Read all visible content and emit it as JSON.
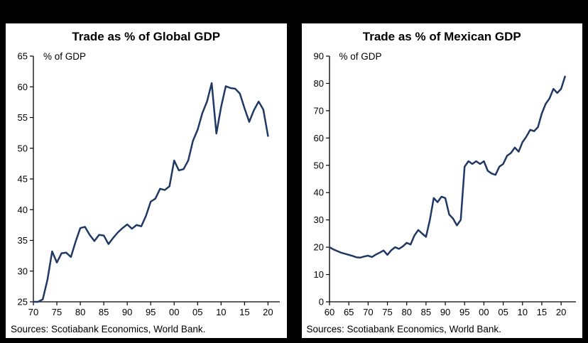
{
  "colors": {
    "background": "#000000",
    "panel": "#ffffff",
    "line": "#1f3864",
    "axis": "#000000",
    "text": "#000000"
  },
  "charts": [
    {
      "title": "Trade as % of Global GDP",
      "axis_note": "% of GDP",
      "source": "Sources: Scotiabank Economics, World Bank.",
      "chart_data": {
        "type": "line",
        "title": "Trade as % of Global GDP",
        "ylabel": "% of GDP",
        "ylim": [
          25,
          65
        ],
        "ytick_step": 5,
        "x_start": 1970,
        "frequency": "annual",
        "values": [
          25.0,
          25.0,
          25.4,
          28.6,
          33.2,
          31.4,
          32.9,
          33.0,
          32.3,
          34.8,
          37.0,
          37.2,
          35.9,
          34.9,
          35.9,
          35.8,
          34.4,
          35.4,
          36.3,
          37.0,
          37.6,
          36.9,
          37.5,
          37.3,
          39.0,
          41.3,
          41.8,
          43.4,
          43.2,
          43.8,
          48.0,
          46.4,
          46.6,
          48.0,
          51.2,
          53.0,
          55.7,
          57.6,
          60.6,
          52.4,
          56.7,
          60.1,
          59.8,
          59.7,
          58.9,
          56.5,
          54.3,
          56.2,
          57.6,
          56.3,
          52.0
        ],
        "xticks": [
          {
            "x": 1970,
            "label": "70"
          },
          {
            "x": 1975,
            "label": "75"
          },
          {
            "x": 1980,
            "label": "80"
          },
          {
            "x": 1985,
            "label": "85"
          },
          {
            "x": 1990,
            "label": "90"
          },
          {
            "x": 1995,
            "label": "95"
          },
          {
            "x": 2000,
            "label": "00"
          },
          {
            "x": 2005,
            "label": "05"
          },
          {
            "x": 2010,
            "label": "10"
          },
          {
            "x": 2015,
            "label": "15"
          },
          {
            "x": 2020,
            "label": "20"
          }
        ],
        "grid": false,
        "legend": "none"
      }
    },
    {
      "title": "Trade as % of Mexican GDP",
      "axis_note": "% of GDP",
      "source": "Sources: Scotiabank Economics, World Bank.",
      "chart_data": {
        "type": "line",
        "title": "Trade as % of Mexican GDP",
        "ylabel": "% of GDP",
        "ylim": [
          0,
          90
        ],
        "ytick_step": 10,
        "x_start": 1960,
        "frequency": "annual",
        "values": [
          20.0,
          19.2,
          18.6,
          18.0,
          17.6,
          17.2,
          16.8,
          16.3,
          16.2,
          16.6,
          16.9,
          16.4,
          17.3,
          18.0,
          18.8,
          17.2,
          18.9,
          20.0,
          19.4,
          20.3,
          21.6,
          21.0,
          24.3,
          26.3,
          25.0,
          23.8,
          30.0,
          38.0,
          36.5,
          38.5,
          38.0,
          32.0,
          30.5,
          28.0,
          30.0,
          49.5,
          51.5,
          50.5,
          51.5,
          50.5,
          51.5,
          48.0,
          47.0,
          46.5,
          49.5,
          50.5,
          53.5,
          54.5,
          56.5,
          55.0,
          58.5,
          60.5,
          63.0,
          62.5,
          64.0,
          69.0,
          72.5,
          74.5,
          78.0,
          76.5,
          78.0,
          82.5
        ],
        "xticks": [
          {
            "x": 1960,
            "label": "60"
          },
          {
            "x": 1965,
            "label": "65"
          },
          {
            "x": 1970,
            "label": "70"
          },
          {
            "x": 1975,
            "label": "75"
          },
          {
            "x": 1980,
            "label": "80"
          },
          {
            "x": 1985,
            "label": "85"
          },
          {
            "x": 1990,
            "label": "90"
          },
          {
            "x": 1995,
            "label": "95"
          },
          {
            "x": 2000,
            "label": "00"
          },
          {
            "x": 2005,
            "label": "05"
          },
          {
            "x": 2010,
            "label": "10"
          },
          {
            "x": 2015,
            "label": "15"
          },
          {
            "x": 2020,
            "label": "20"
          }
        ],
        "grid": false,
        "legend": "none"
      }
    }
  ]
}
